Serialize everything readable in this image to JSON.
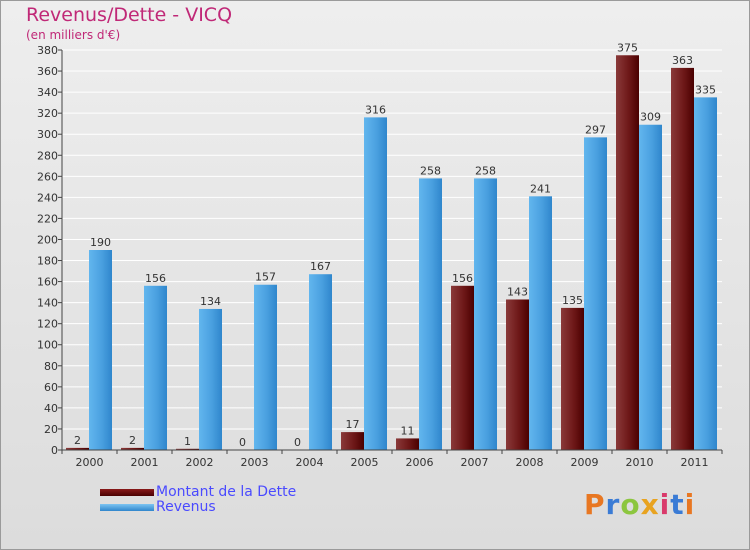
{
  "header": {
    "title": "Revenus/Dette - VICQ",
    "subtitle": "(en milliers d'€)"
  },
  "legend": {
    "items": [
      {
        "label": "Montant de la Dette",
        "color": "#6b0000"
      },
      {
        "label": "Revenus",
        "color": "#4da6e8"
      }
    ]
  },
  "logo": {
    "text": "Proxiti",
    "letters": [
      "P",
      "r",
      "o",
      "x",
      "i",
      "t",
      "i"
    ],
    "colors": [
      "#e87722",
      "#3a7bd5",
      "#8cc63f",
      "#e8a320",
      "#d93a6b",
      "#3a7bd5",
      "#e87722"
    ]
  },
  "chart_data": {
    "type": "bar",
    "title": "Revenus/Dette - VICQ",
    "ylabel": "(en milliers d'€)",
    "xlabel": "",
    "categories": [
      "2000",
      "2001",
      "2002",
      "2003",
      "2004",
      "2005",
      "2006",
      "2007",
      "2008",
      "2009",
      "2010",
      "2011"
    ],
    "series": [
      {
        "name": "Montant de la Dette",
        "color": "#6b0000",
        "values": [
          2,
          2,
          1,
          0,
          0,
          17,
          11,
          156,
          143,
          135,
          375,
          363
        ]
      },
      {
        "name": "Revenus",
        "color": "#4da6e8",
        "values": [
          190,
          156,
          134,
          157,
          167,
          316,
          258,
          258,
          241,
          297,
          309,
          335
        ]
      }
    ],
    "ylim": [
      0,
      380
    ],
    "yticks": [
      0,
      20,
      40,
      60,
      80,
      100,
      120,
      140,
      160,
      180,
      200,
      220,
      240,
      260,
      280,
      300,
      320,
      340,
      360,
      380
    ],
    "grid": true,
    "legend": "bottom-left"
  }
}
